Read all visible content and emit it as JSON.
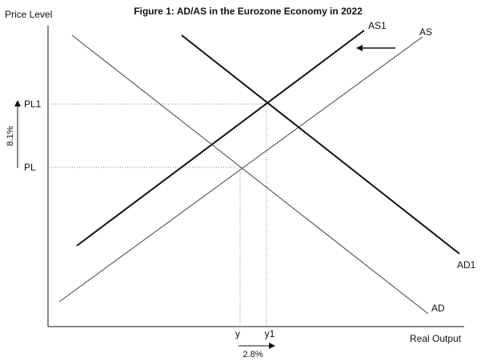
{
  "title": "Figure 1: AD/AS in the Eurozone Economy in 2022",
  "axes": {
    "y_label": "Price Level",
    "x_label": "Real Output"
  },
  "price_levels": {
    "pl1": "PL1",
    "pl": "PL"
  },
  "outputs": {
    "y": "y",
    "y1": "y1"
  },
  "curves": {
    "as1": "AS1",
    "as": "AS",
    "ad1": "AD1",
    "ad": "AD"
  },
  "changes": {
    "price_change": "8.1%",
    "output_change": "2.8%"
  },
  "colors": {
    "line": "#111111",
    "thin_line": "#444444",
    "guide": "#888888"
  }
}
